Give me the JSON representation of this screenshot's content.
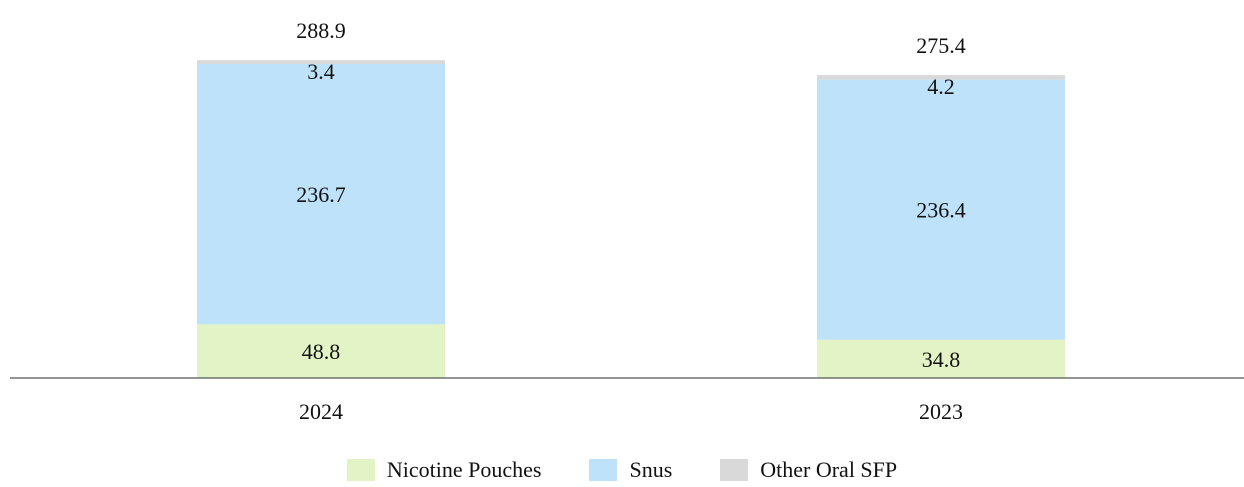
{
  "chart_data": {
    "type": "bar",
    "stacked": true,
    "categories": [
      "2024",
      "2023"
    ],
    "series": [
      {
        "name": "Nicotine Pouches",
        "values": [
          48.8,
          34.8
        ],
        "color": "#e2f4c5"
      },
      {
        "name": "Snus",
        "values": [
          236.7,
          236.4
        ],
        "color": "#bfe2fb"
      },
      {
        "name": "Other Oral SFP",
        "values": [
          3.4,
          4.2
        ],
        "color": "#d9d9d9"
      }
    ],
    "totals": [
      288.9,
      275.4
    ],
    "ylim": [
      0,
      300
    ],
    "grid": false,
    "legend_position": "bottom"
  }
}
